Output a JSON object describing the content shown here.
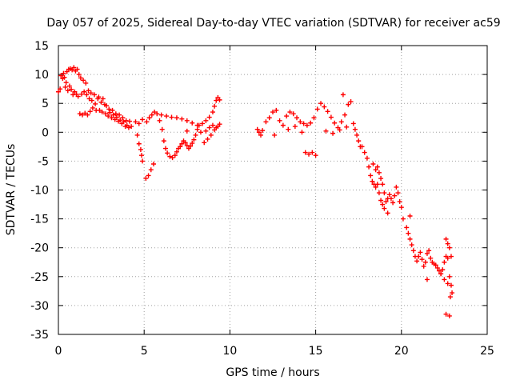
{
  "chart_data": {
    "type": "scatter",
    "title": "Day 057 of 2025, Sidereal Day-to-day VTEC variation (SDTVAR) for receiver ac59",
    "xlabel": "GPS time / hours",
    "ylabel": "SDTVAR / TECUs",
    "xlim": [
      0,
      25
    ],
    "ylim": [
      -35,
      15
    ],
    "xticks": [
      0,
      5,
      10,
      15,
      20,
      25
    ],
    "yticks": [
      -35,
      -30,
      -25,
      -20,
      -15,
      -10,
      -5,
      0,
      5,
      10,
      15
    ],
    "grid": true,
    "marker": "+",
    "color": "#ff0000",
    "series": [
      {
        "name": "SDTVAR",
        "points": [
          [
            0.0,
            7.0
          ],
          [
            0.1,
            7.5
          ],
          [
            0.15,
            9.8
          ],
          [
            0.25,
            9.3
          ],
          [
            0.3,
            10.2
          ],
          [
            0.35,
            9.5
          ],
          [
            0.4,
            7.8
          ],
          [
            0.45,
            8.6
          ],
          [
            0.5,
            10.5
          ],
          [
            0.55,
            7.2
          ],
          [
            0.6,
            10.9
          ],
          [
            0.65,
            8.0
          ],
          [
            0.7,
            11.0
          ],
          [
            0.75,
            7.4
          ],
          [
            0.8,
            10.8
          ],
          [
            0.85,
            6.5
          ],
          [
            0.9,
            11.2
          ],
          [
            0.95,
            7.0
          ],
          [
            1.0,
            10.6
          ],
          [
            1.05,
            6.6
          ],
          [
            1.1,
            10.9
          ],
          [
            1.15,
            6.2
          ],
          [
            1.2,
            10.0
          ],
          [
            1.25,
            3.2
          ],
          [
            1.3,
            9.4
          ],
          [
            1.35,
            6.6
          ],
          [
            1.4,
            3.0
          ],
          [
            1.45,
            9.0
          ],
          [
            1.5,
            7.0
          ],
          [
            1.55,
            3.3
          ],
          [
            1.6,
            8.5
          ],
          [
            1.65,
            6.5
          ],
          [
            1.7,
            3.0
          ],
          [
            1.75,
            7.2
          ],
          [
            1.8,
            5.8
          ],
          [
            1.85,
            3.6
          ],
          [
            1.9,
            6.8
          ],
          [
            1.95,
            5.5
          ],
          [
            2.0,
            4.2
          ],
          [
            2.1,
            6.5
          ],
          [
            2.15,
            4.9
          ],
          [
            2.2,
            3.8
          ],
          [
            2.3,
            5.8
          ],
          [
            2.35,
            6.1
          ],
          [
            2.4,
            3.8
          ],
          [
            2.5,
            5.2
          ],
          [
            2.55,
            3.5
          ],
          [
            2.6,
            5.8
          ],
          [
            2.7,
            4.8
          ],
          [
            2.75,
            3.2
          ],
          [
            2.8,
            4.6
          ],
          [
            2.9,
            2.8
          ],
          [
            2.95,
            4.0
          ],
          [
            3.0,
            3.4
          ],
          [
            3.1,
            2.5
          ],
          [
            3.15,
            3.8
          ],
          [
            3.2,
            3.0
          ],
          [
            3.3,
            2.2
          ],
          [
            3.35,
            3.2
          ],
          [
            3.4,
            2.6
          ],
          [
            3.5,
            1.9
          ],
          [
            3.55,
            3.0
          ],
          [
            3.6,
            2.1
          ],
          [
            3.7,
            1.5
          ],
          [
            3.75,
            2.5
          ],
          [
            3.8,
            1.8
          ],
          [
            3.9,
            1.0
          ],
          [
            3.95,
            2.0
          ],
          [
            4.0,
            1.2
          ],
          [
            4.1,
            0.8
          ],
          [
            4.15,
            1.9
          ],
          [
            4.25,
            1.0
          ],
          [
            4.5,
            1.8
          ],
          [
            4.7,
            1.5
          ],
          [
            4.9,
            2.2
          ],
          [
            4.6,
            -0.5
          ],
          [
            4.7,
            -2.0
          ],
          [
            4.8,
            -3.0
          ],
          [
            4.85,
            -4.0
          ],
          [
            4.9,
            -5.0
          ],
          [
            5.1,
            -8.0
          ],
          [
            5.25,
            -7.5
          ],
          [
            5.4,
            -6.5
          ],
          [
            5.55,
            -5.5
          ],
          [
            5.15,
            1.8
          ],
          [
            5.3,
            2.5
          ],
          [
            5.45,
            3.0
          ],
          [
            5.6,
            3.5
          ],
          [
            5.75,
            3.2
          ],
          [
            5.9,
            2.0
          ],
          [
            6.05,
            0.5
          ],
          [
            6.15,
            -1.5
          ],
          [
            6.25,
            -2.8
          ],
          [
            6.35,
            -3.6
          ],
          [
            6.5,
            -4.2
          ],
          [
            6.65,
            -4.4
          ],
          [
            6.8,
            -4.0
          ],
          [
            6.9,
            -3.4
          ],
          [
            7.0,
            -2.8
          ],
          [
            7.1,
            -2.5
          ],
          [
            7.2,
            -2.0
          ],
          [
            7.3,
            -1.5
          ],
          [
            7.4,
            -1.8
          ],
          [
            7.5,
            -2.3
          ],
          [
            7.6,
            -2.8
          ],
          [
            7.7,
            -2.4
          ],
          [
            7.8,
            -1.9
          ],
          [
            7.9,
            -1.3
          ],
          [
            8.0,
            -0.5
          ],
          [
            6.0,
            3.0
          ],
          [
            6.3,
            2.8
          ],
          [
            6.6,
            2.6
          ],
          [
            6.9,
            2.5
          ],
          [
            7.2,
            2.3
          ],
          [
            7.5,
            2.0
          ],
          [
            7.8,
            1.6
          ],
          [
            8.1,
            1.2
          ],
          [
            8.4,
            1.5
          ],
          [
            8.6,
            2.0
          ],
          [
            8.8,
            2.6
          ],
          [
            9.0,
            3.5
          ],
          [
            9.1,
            4.5
          ],
          [
            9.2,
            5.5
          ],
          [
            9.3,
            6.0
          ],
          [
            9.4,
            5.6
          ],
          [
            8.5,
            -1.8
          ],
          [
            8.7,
            -1.2
          ],
          [
            8.9,
            -0.5
          ],
          [
            9.1,
            0.4
          ],
          [
            9.3,
            1.0
          ],
          [
            9.4,
            1.4
          ],
          [
            8.6,
            0.2
          ],
          [
            8.8,
            0.8
          ],
          [
            9.0,
            1.2
          ],
          [
            9.2,
            0.8
          ],
          [
            8.1,
            0.5
          ],
          [
            7.5,
            0.2
          ],
          [
            8.3,
            0.0
          ],
          [
            8.2,
            1.2
          ],
          [
            11.6,
            0.5
          ],
          [
            11.7,
            0.0
          ],
          [
            11.8,
            -0.5
          ],
          [
            11.9,
            0.3
          ],
          [
            12.1,
            1.8
          ],
          [
            12.3,
            2.5
          ],
          [
            12.5,
            3.5
          ],
          [
            12.7,
            3.8
          ],
          [
            12.9,
            2.0
          ],
          [
            13.1,
            1.2
          ],
          [
            13.3,
            2.8
          ],
          [
            13.5,
            3.5
          ],
          [
            13.7,
            3.2
          ],
          [
            13.9,
            2.5
          ],
          [
            14.1,
            1.8
          ],
          [
            14.3,
            1.5
          ],
          [
            14.5,
            1.2
          ],
          [
            14.7,
            1.6
          ],
          [
            14.9,
            2.5
          ],
          [
            15.1,
            4.0
          ],
          [
            15.3,
            5.0
          ],
          [
            15.5,
            4.4
          ],
          [
            15.7,
            3.6
          ],
          [
            15.9,
            2.6
          ],
          [
            16.1,
            1.6
          ],
          [
            16.3,
            0.8
          ],
          [
            16.5,
            1.8
          ],
          [
            16.7,
            3.0
          ],
          [
            16.9,
            4.8
          ],
          [
            17.05,
            5.3
          ],
          [
            16.6,
            6.5
          ],
          [
            12.6,
            -0.5
          ],
          [
            13.4,
            0.5
          ],
          [
            13.8,
            1.0
          ],
          [
            14.2,
            0.0
          ],
          [
            14.4,
            -3.5
          ],
          [
            14.6,
            -3.8
          ],
          [
            14.8,
            -3.5
          ],
          [
            15.0,
            -4.0
          ],
          [
            15.6,
            0.2
          ],
          [
            16.0,
            -0.2
          ],
          [
            16.4,
            0.4
          ],
          [
            16.8,
            0.9
          ],
          [
            17.2,
            1.5
          ],
          [
            17.3,
            0.5
          ],
          [
            17.4,
            -0.5
          ],
          [
            17.5,
            -1.5
          ],
          [
            17.6,
            -2.5
          ],
          [
            17.7,
            -2.5
          ],
          [
            17.85,
            -3.5
          ],
          [
            18.0,
            -4.5
          ],
          [
            18.1,
            -6.0
          ],
          [
            18.2,
            -7.5
          ],
          [
            18.3,
            -8.5
          ],
          [
            18.4,
            -9.0
          ],
          [
            18.5,
            -9.5
          ],
          [
            18.6,
            -6.0
          ],
          [
            18.7,
            -7.0
          ],
          [
            18.8,
            -8.0
          ],
          [
            18.9,
            -9.0
          ],
          [
            19.0,
            -10.5
          ],
          [
            19.1,
            -12.0
          ],
          [
            19.2,
            -11.5
          ],
          [
            19.3,
            -10.8
          ],
          [
            19.4,
            -11.5
          ],
          [
            19.5,
            -12.2
          ],
          [
            19.6,
            -11.0
          ],
          [
            19.7,
            -9.5
          ],
          [
            19.8,
            -10.5
          ],
          [
            19.9,
            -12.0
          ],
          [
            20.0,
            -13.0
          ],
          [
            18.35,
            -5.5
          ],
          [
            18.5,
            -6.5
          ],
          [
            18.6,
            -9.0
          ],
          [
            18.7,
            -10.5
          ],
          [
            18.8,
            -11.8
          ],
          [
            18.9,
            -12.5
          ],
          [
            19.0,
            -13.2
          ],
          [
            19.2,
            -14.0
          ],
          [
            20.1,
            -15.0
          ],
          [
            20.3,
            -16.5
          ],
          [
            20.4,
            -17.5
          ],
          [
            20.5,
            -18.5
          ],
          [
            20.6,
            -19.5
          ],
          [
            20.7,
            -20.5
          ],
          [
            20.8,
            -21.5
          ],
          [
            20.9,
            -22.3
          ],
          [
            21.0,
            -21.5
          ],
          [
            21.1,
            -20.8
          ],
          [
            21.2,
            -22.0
          ],
          [
            21.3,
            -23.2
          ],
          [
            21.4,
            -22.5
          ],
          [
            21.5,
            -21.0
          ],
          [
            21.6,
            -20.5
          ],
          [
            21.7,
            -21.8
          ],
          [
            21.8,
            -22.5
          ],
          [
            21.9,
            -22.8
          ],
          [
            22.0,
            -23.0
          ],
          [
            22.1,
            -23.5
          ],
          [
            22.2,
            -24.0
          ],
          [
            22.3,
            -24.5
          ],
          [
            22.4,
            -23.8
          ],
          [
            22.5,
            -22.5
          ],
          [
            22.6,
            -21.5
          ],
          [
            22.7,
            -21.8
          ],
          [
            22.8,
            -25.0
          ],
          [
            22.9,
            -26.5
          ],
          [
            22.95,
            -27.8
          ],
          [
            22.6,
            -18.5
          ],
          [
            22.7,
            -19.3
          ],
          [
            22.8,
            -20.0
          ],
          [
            22.9,
            -21.5
          ],
          [
            22.3,
            -24.5
          ],
          [
            22.5,
            -25.5
          ],
          [
            22.7,
            -26.2
          ],
          [
            22.85,
            -28.5
          ],
          [
            21.5,
            -25.5
          ],
          [
            22.6,
            -31.5
          ],
          [
            22.8,
            -31.8
          ],
          [
            20.5,
            -14.5
          ]
        ]
      }
    ]
  }
}
